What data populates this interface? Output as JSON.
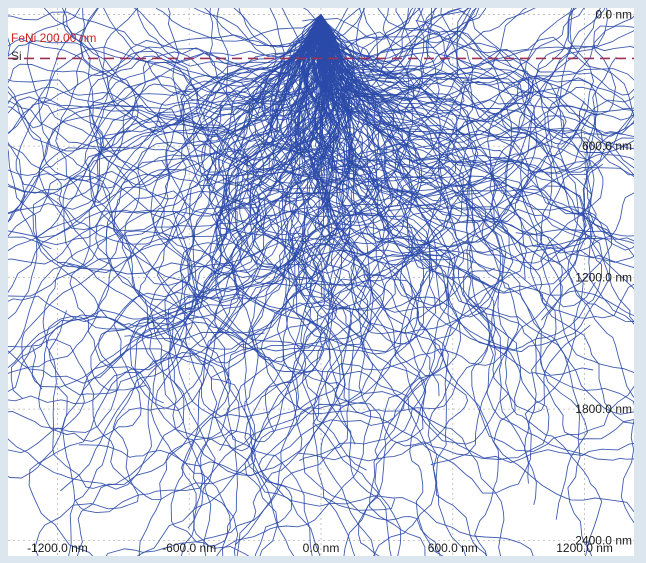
{
  "chart_data": {
    "type": "monte-carlo-electron-trajectories",
    "layers": [
      {
        "name": "FeNi",
        "thickness_nm": 200.0,
        "label": "FeNi 200.00 nm",
        "color": "#cc2222"
      },
      {
        "name": "Si",
        "label": "Si",
        "color": "#333333"
      }
    ],
    "beam_entry_x_nm": 0.0,
    "beam_entry_depth_nm": 0.0,
    "x_tick_labels": [
      "-1200.0 nm",
      "-600.0 nm",
      "0.0 nm",
      "600.0 nm",
      "1200.0 nm"
    ],
    "x_ticks_nm": [
      -1200,
      -600,
      0,
      600,
      1200
    ],
    "depth_tick_labels": [
      "0.0 nm",
      "600.0 nm",
      "1200.0 nm",
      "1800.0 nm",
      "2400.0 nm"
    ],
    "depth_ticks_nm": [
      0,
      600,
      1200,
      1800,
      2400
    ],
    "x_range_nm": [
      -1425,
      1425
    ],
    "depth_range_nm": [
      -30,
      2470
    ],
    "trajectory_color": "#2b4aa8",
    "interface_line_color": "#993355",
    "grid": true
  }
}
